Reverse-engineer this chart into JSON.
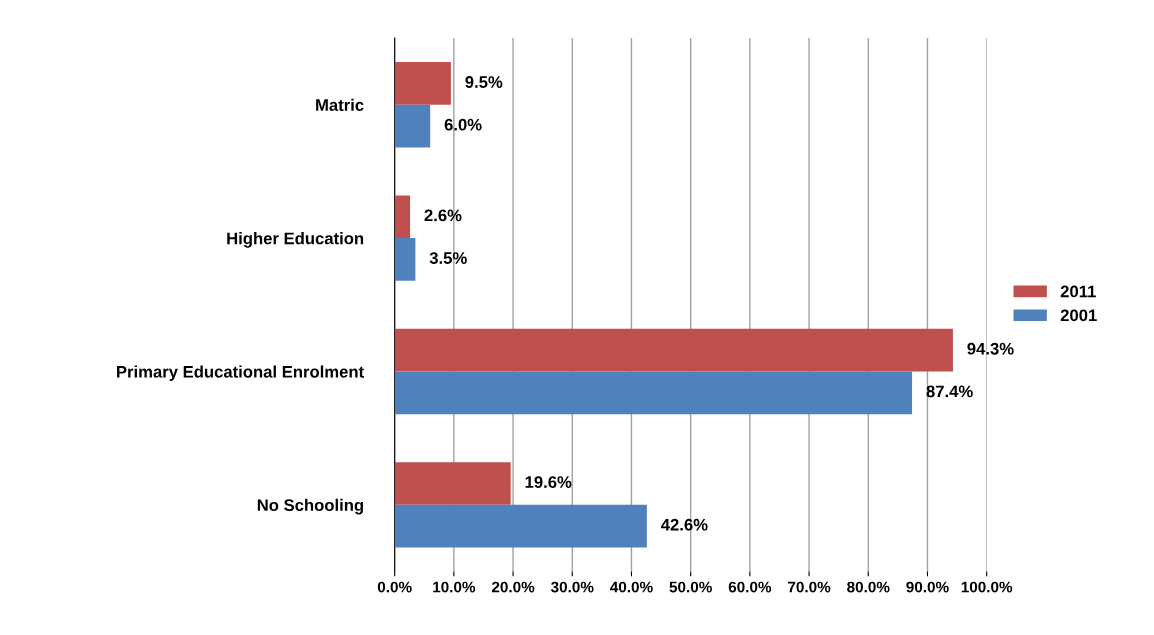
{
  "chart_data": {
    "type": "bar",
    "orientation": "horizontal",
    "categories": [
      "Matric",
      "Higher Education",
      "Primary Educational Enrolment",
      "No Schooling"
    ],
    "series": [
      {
        "name": "2011",
        "color": "#c0504d",
        "values": [
          9.5,
          2.6,
          94.3,
          19.6
        ],
        "value_labels": [
          "9.5%",
          "2.6%",
          "94.3%",
          "19.6%"
        ]
      },
      {
        "name": "2001",
        "color": "#4f81bd",
        "values": [
          6.0,
          3.5,
          87.4,
          42.6
        ],
        "value_labels": [
          "6.0%",
          "3.5%",
          "87.4%",
          "42.6%"
        ]
      }
    ],
    "xlim": [
      0,
      100
    ],
    "xticks": [
      {
        "value": 0,
        "label": "0.0%"
      },
      {
        "value": 10,
        "label": "10.0%"
      },
      {
        "value": 20,
        "label": "20.0%"
      },
      {
        "value": 30,
        "label": "30.0%"
      },
      {
        "value": 40,
        "label": "40.0%"
      },
      {
        "value": 50,
        "label": "50.0%"
      },
      {
        "value": 60,
        "label": "60.0%"
      },
      {
        "value": 70,
        "label": "70.0%"
      },
      {
        "value": 80,
        "label": "80.0%"
      },
      {
        "value": 90,
        "label": "90.0%"
      },
      {
        "value": 100,
        "label": "100.0%"
      }
    ],
    "grid": "x",
    "legend": "right"
  }
}
